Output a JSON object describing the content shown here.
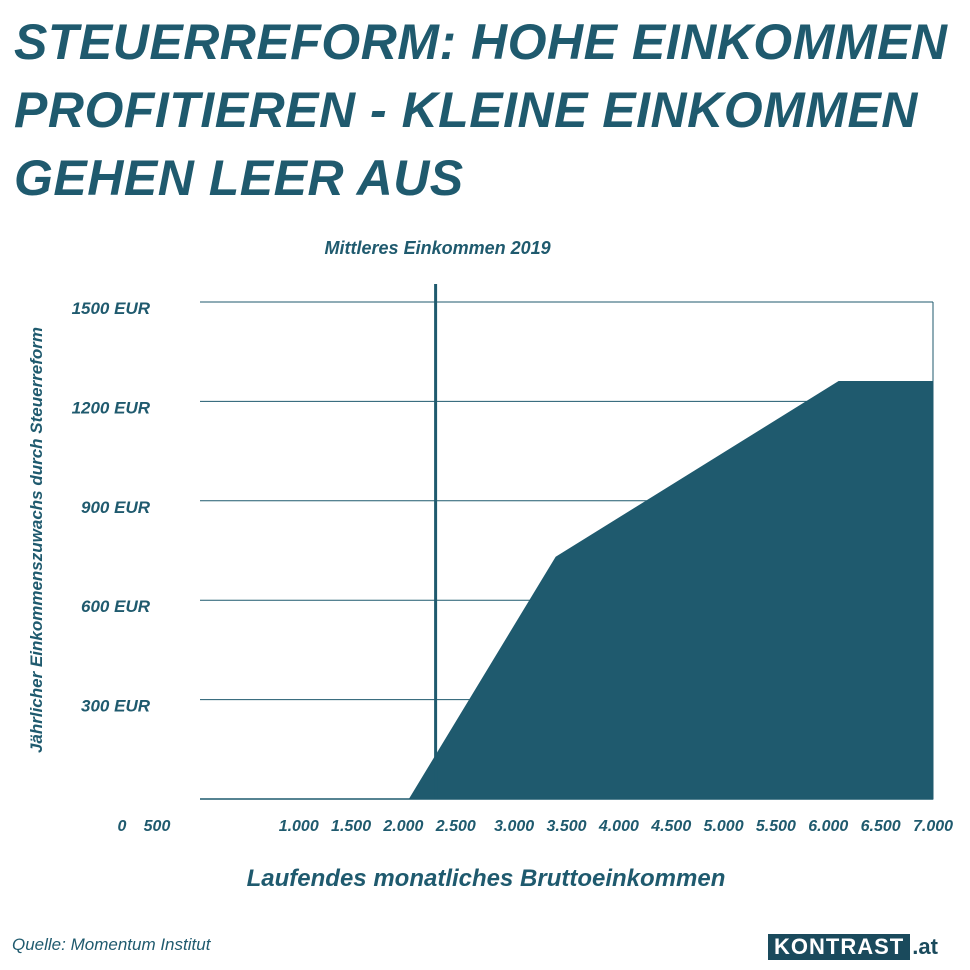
{
  "title": "STEUERREFORM: HOHE EINKOMMEN PROFITIEREN - KLEINE EINKOMMEN GEHEN LEER AUS",
  "source": "Quelle: Momentum Institut",
  "logo": {
    "brand": "KONTRAST",
    "tld": ".at"
  },
  "colors": {
    "fill": "#1f5a6e",
    "text": "#1f5a6e",
    "grid": "#1f5a6e"
  },
  "chart_data": {
    "type": "area",
    "xlabel": "Laufendes monatliches Bruttoeinkommen",
    "ylabel": "Jährlicher Einkommenszuwachs durch Steuerreform",
    "x_ticks": [
      0,
      500,
      1000,
      1500,
      2000,
      2500,
      3000,
      3500,
      4000,
      4500,
      5000,
      5500,
      6000,
      6500,
      7000
    ],
    "x_tick_labels": [
      "0",
      "500",
      "1.000",
      "1.500",
      "2.000",
      "2.500",
      "3.000",
      "3.500",
      "4.000",
      "4.500",
      "5.000",
      "5.500",
      "6.000",
      "6.500",
      "7.000"
    ],
    "y_ticks": [
      300,
      600,
      900,
      1200,
      1500
    ],
    "y_tick_labels": [
      "300 EUR",
      "600 EUR",
      "900 EUR",
      "1200 EUR",
      "1500 EUR"
    ],
    "xlim": [
      0,
      7000
    ],
    "ylim": [
      0,
      1500
    ],
    "grid": true,
    "series": [
      {
        "x": [
          0,
          2000,
          3400,
          6100,
          7000
        ],
        "y": [
          0,
          0,
          730,
          1260,
          1260
        ]
      }
    ],
    "annotations": [
      {
        "label": "Mittleres Einkommen 2019",
        "x": 2250
      }
    ]
  }
}
